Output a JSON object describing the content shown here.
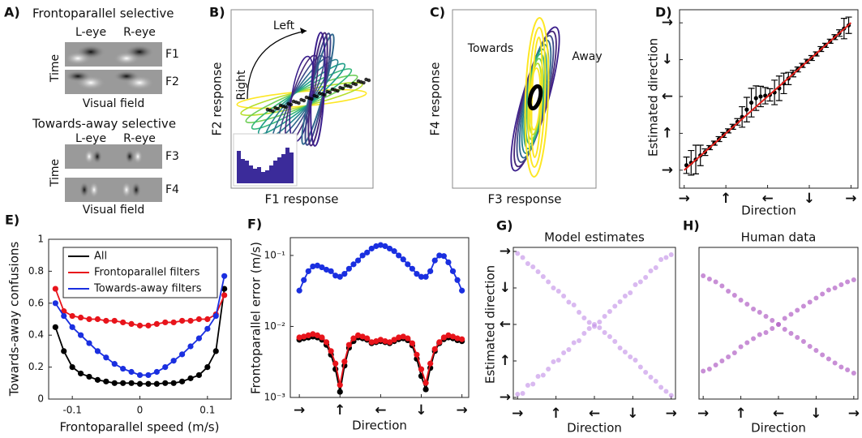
{
  "panel_a": {
    "panel_label": "A)",
    "title_1": "Frontoparallel selective",
    "title_2": "Towards-away selective",
    "left_eye": "L-eye",
    "right_eye": "R-eye",
    "time": "Time",
    "visual_field": "Visual field",
    "filters": [
      "F1",
      "F2",
      "F3",
      "F4"
    ]
  },
  "chart_data": [
    {
      "type": "ellipses",
      "panel_label": "B)",
      "xlabel": "F1 response",
      "ylabel": "F2 response",
      "annotations": [
        "Left",
        "Right"
      ]
    },
    {
      "type": "ellipses",
      "panel_label": "C)",
      "xlabel": "F3 response",
      "ylabel": "F4 response",
      "annotations": [
        "Towards",
        "Away"
      ]
    },
    {
      "type": "errorbar",
      "panel_label": "D)",
      "xlabel": "Direction",
      "ylabel": "Estimated direction",
      "xlim": [
        -10,
        375
      ],
      "ylim": [
        -44,
        392
      ],
      "xticks": [
        {
          "value": 0,
          "label": "→"
        },
        {
          "value": 90,
          "label": "↑"
        },
        {
          "value": 180,
          "label": "←"
        },
        {
          "value": 270,
          "label": "↓"
        },
        {
          "value": 360,
          "label": "→"
        }
      ],
      "yticks": [
        {
          "value": 0,
          "label": "→"
        },
        {
          "value": 90,
          "label": "↑"
        },
        {
          "value": 180,
          "label": "←"
        },
        {
          "value": 270,
          "label": "↓"
        },
        {
          "value": 360,
          "label": "→"
        }
      ],
      "series": [
        {
          "color": "#000000",
          "x": [
            5,
            15,
            25,
            35,
            45,
            55,
            65,
            75,
            85,
            95,
            105,
            115,
            125,
            135,
            145,
            155,
            165,
            175,
            185,
            195,
            205,
            215,
            225,
            235,
            245,
            255,
            265,
            275,
            285,
            295,
            305,
            315,
            325,
            335,
            345,
            355
          ],
          "values": [
            12,
            18,
            26,
            36,
            44,
            55,
            66,
            76,
            86,
            96,
            106,
            118,
            130,
            148,
            165,
            176,
            180,
            182,
            184,
            190,
            200,
            212,
            224,
            236,
            246,
            256,
            266,
            274,
            284,
            296,
            305,
            315,
            325,
            335,
            346,
            354
          ],
          "errors": [
            20,
            30,
            35,
            25,
            8,
            5,
            5,
            6,
            6,
            5,
            6,
            8,
            25,
            30,
            35,
            30,
            25,
            20,
            15,
            30,
            30,
            25,
            15,
            8,
            6,
            5,
            5,
            6,
            5,
            6,
            5,
            5,
            6,
            8,
            25,
            20
          ]
        },
        {
          "color": "#e0201b",
          "x": [
            0,
            360
          ],
          "values": [
            0,
            360
          ]
        }
      ]
    },
    {
      "type": "line",
      "panel_label": "E)",
      "xlabel": "Frontoparallel speed (m/s)",
      "ylabel": "Towards-away confusions",
      "xlim": [
        -0.135,
        0.135
      ],
      "ylim": [
        0,
        1
      ],
      "xticks": [
        -0.1,
        0,
        0.1
      ],
      "yticks": [
        0,
        0.2,
        0.4,
        0.6,
        0.8,
        1
      ],
      "legend": "upper left",
      "x": [
        -0.125,
        -0.1125,
        -0.1,
        -0.0875,
        -0.075,
        -0.0625,
        -0.05,
        -0.0375,
        -0.025,
        -0.0125,
        0,
        0.0125,
        0.025,
        0.0375,
        0.05,
        0.0625,
        0.075,
        0.0875,
        0.1,
        0.1125,
        0.125
      ],
      "series": [
        {
          "name": "All",
          "color": "#000000",
          "values": [
            0.45,
            0.3,
            0.2,
            0.16,
            0.14,
            0.12,
            0.11,
            0.1,
            0.1,
            0.1,
            0.095,
            0.095,
            0.095,
            0.1,
            0.1,
            0.11,
            0.13,
            0.15,
            0.2,
            0.3,
            0.69
          ]
        },
        {
          "name": "Frontoparallel filters",
          "color": "#e8141b",
          "values": [
            0.69,
            0.55,
            0.52,
            0.51,
            0.5,
            0.5,
            0.49,
            0.49,
            0.48,
            0.47,
            0.46,
            0.46,
            0.47,
            0.48,
            0.48,
            0.49,
            0.49,
            0.5,
            0.5,
            0.53,
            0.65
          ]
        },
        {
          "name": "Towards-away filters",
          "color": "#1a2fe0",
          "values": [
            0.6,
            0.52,
            0.45,
            0.4,
            0.35,
            0.3,
            0.26,
            0.22,
            0.19,
            0.17,
            0.15,
            0.15,
            0.17,
            0.2,
            0.24,
            0.28,
            0.33,
            0.38,
            0.44,
            0.52,
            0.77
          ]
        }
      ]
    },
    {
      "type": "line",
      "panel_label": "F)",
      "xlabel": "Direction",
      "ylabel": "Frontoparallel error (m/s)",
      "log_y": true,
      "xlim": [
        -20,
        375
      ],
      "ylim": [
        0.001,
        0.178
      ],
      "xticks": [
        {
          "value": 0,
          "label": "→"
        },
        {
          "value": 90,
          "label": "↑"
        },
        {
          "value": 180,
          "label": "←"
        },
        {
          "value": 270,
          "label": "↓"
        },
        {
          "value": 360,
          "label": "→"
        }
      ],
      "yticks": [
        {
          "value": 0.001,
          "label": "10⁻³"
        },
        {
          "value": 0.01,
          "label": "10⁻²"
        },
        {
          "value": 0.1,
          "label": "10⁻¹"
        }
      ],
      "x": [
        0,
        10,
        20,
        30,
        40,
        50,
        60,
        70,
        80,
        90,
        100,
        110,
        120,
        130,
        140,
        150,
        160,
        170,
        180,
        190,
        200,
        210,
        220,
        230,
        240,
        250,
        260,
        270,
        280,
        290,
        300,
        310,
        320,
        330,
        340,
        350,
        360
      ],
      "series": [
        {
          "color": "#1a2fe0",
          "values": [
            0.032,
            0.045,
            0.06,
            0.07,
            0.072,
            0.068,
            0.063,
            0.06,
            0.052,
            0.05,
            0.055,
            0.065,
            0.075,
            0.085,
            0.1,
            0.11,
            0.125,
            0.135,
            0.14,
            0.135,
            0.125,
            0.115,
            0.1,
            0.088,
            0.075,
            0.065,
            0.055,
            0.05,
            0.05,
            0.06,
            0.085,
            0.1,
            0.098,
            0.08,
            0.06,
            0.045,
            0.032
          ]
        },
        {
          "color": "#000000",
          "values": [
            0.0065,
            0.0068,
            0.007,
            0.0072,
            0.007,
            0.0065,
            0.0055,
            0.004,
            0.0025,
            0.0012,
            0.0028,
            0.005,
            0.0062,
            0.007,
            0.0068,
            0.0065,
            0.0058,
            0.006,
            0.0062,
            0.006,
            0.0058,
            0.0062,
            0.0066,
            0.0068,
            0.0064,
            0.0054,
            0.0035,
            0.002,
            0.0013,
            0.0026,
            0.0045,
            0.0058,
            0.0066,
            0.007,
            0.0068,
            0.0064,
            0.0062
          ]
        },
        {
          "color": "#e8141b",
          "values": [
            0.007,
            0.0072,
            0.0075,
            0.0078,
            0.0075,
            0.007,
            0.006,
            0.0045,
            0.003,
            0.0015,
            0.0032,
            0.0055,
            0.0068,
            0.0075,
            0.0072,
            0.0068,
            0.006,
            0.0062,
            0.0065,
            0.0062,
            0.006,
            0.0065,
            0.007,
            0.0072,
            0.0068,
            0.0058,
            0.004,
            0.0025,
            0.0016,
            0.003,
            0.0048,
            0.006,
            0.007,
            0.0075,
            0.0072,
            0.0068,
            0.0066
          ]
        }
      ]
    },
    {
      "type": "scatter",
      "panel_label": "G)",
      "title": "Model estimates",
      "xlabel": "Direction",
      "ylabel": "Estimated direction",
      "xlim": [
        -10,
        370
      ],
      "ylim": [
        -4,
        370
      ],
      "color": "#c08ae6",
      "opacity": 0.6,
      "xticks": [
        {
          "value": 0,
          "label": "→"
        },
        {
          "value": 90,
          "label": "↑"
        },
        {
          "value": 180,
          "label": "←"
        },
        {
          "value": 270,
          "label": "↓"
        },
        {
          "value": 360,
          "label": "→"
        }
      ],
      "yticks": [
        {
          "value": 0,
          "label": "→"
        },
        {
          "value": 90,
          "label": "↑"
        },
        {
          "value": 180,
          "label": "←"
        },
        {
          "value": 270,
          "label": "↓"
        },
        {
          "value": 360,
          "label": "→"
        }
      ],
      "x": [
        0,
        12,
        24,
        36,
        48,
        60,
        72,
        84,
        96,
        108,
        120,
        132,
        144,
        156,
        168,
        180,
        192,
        204,
        216,
        228,
        240,
        252,
        264,
        276,
        288,
        300,
        312,
        324,
        336,
        348,
        360,
        0,
        12,
        24,
        36,
        48,
        60,
        72,
        84,
        96,
        108,
        120,
        132,
        144,
        156,
        168,
        180,
        192,
        204,
        216,
        228,
        240,
        252,
        264,
        276,
        288,
        300,
        312,
        324,
        336,
        348,
        360
      ],
      "values": [
        8,
        10,
        30,
        33,
        52,
        55,
        70,
        88,
        92,
        110,
        118,
        135,
        140,
        158,
        170,
        175,
        186,
        200,
        212,
        225,
        236,
        250,
        258,
        278,
        285,
        296,
        312,
        320,
        340,
        345,
        352,
        355,
        345,
        330,
        322,
        310,
        298,
        285,
        270,
        262,
        250,
        235,
        228,
        210,
        196,
        185,
        180,
        172,
        160,
        150,
        138,
        122,
        112,
        100,
        92,
        75,
        62,
        50,
        40,
        25,
        15,
        5
      ]
    },
    {
      "type": "scatter",
      "panel_label": "H)",
      "title": "Human data",
      "xlabel": "Direction",
      "xlim": [
        -10,
        370
      ],
      "ylim": [
        -4,
        370
      ],
      "color": "#b060c4",
      "opacity": 0.7,
      "xticks": [
        {
          "value": 0,
          "label": "→"
        },
        {
          "value": 90,
          "label": "↑"
        },
        {
          "value": 180,
          "label": "←"
        },
        {
          "value": 270,
          "label": "↓"
        },
        {
          "value": 360,
          "label": "→"
        }
      ],
      "x": [
        0,
        15,
        30,
        45,
        60,
        75,
        90,
        105,
        120,
        135,
        150,
        165,
        180,
        195,
        210,
        225,
        240,
        255,
        270,
        285,
        300,
        315,
        330,
        345,
        360,
        0,
        15,
        30,
        45,
        60,
        75,
        90,
        105,
        120,
        135,
        150,
        165,
        180,
        195,
        210,
        225,
        240,
        255,
        270,
        285,
        300,
        315,
        330,
        345,
        360
      ],
      "values": [
        65,
        70,
        80,
        90,
        100,
        110,
        125,
        135,
        145,
        155,
        160,
        170,
        180,
        195,
        205,
        215,
        225,
        235,
        245,
        255,
        265,
        270,
        278,
        285,
        290,
        300,
        292,
        285,
        275,
        262,
        252,
        240,
        230,
        218,
        210,
        200,
        190,
        180,
        168,
        158,
        148,
        138,
        126,
        116,
        105,
        95,
        85,
        75,
        68,
        60
      ]
    }
  ]
}
